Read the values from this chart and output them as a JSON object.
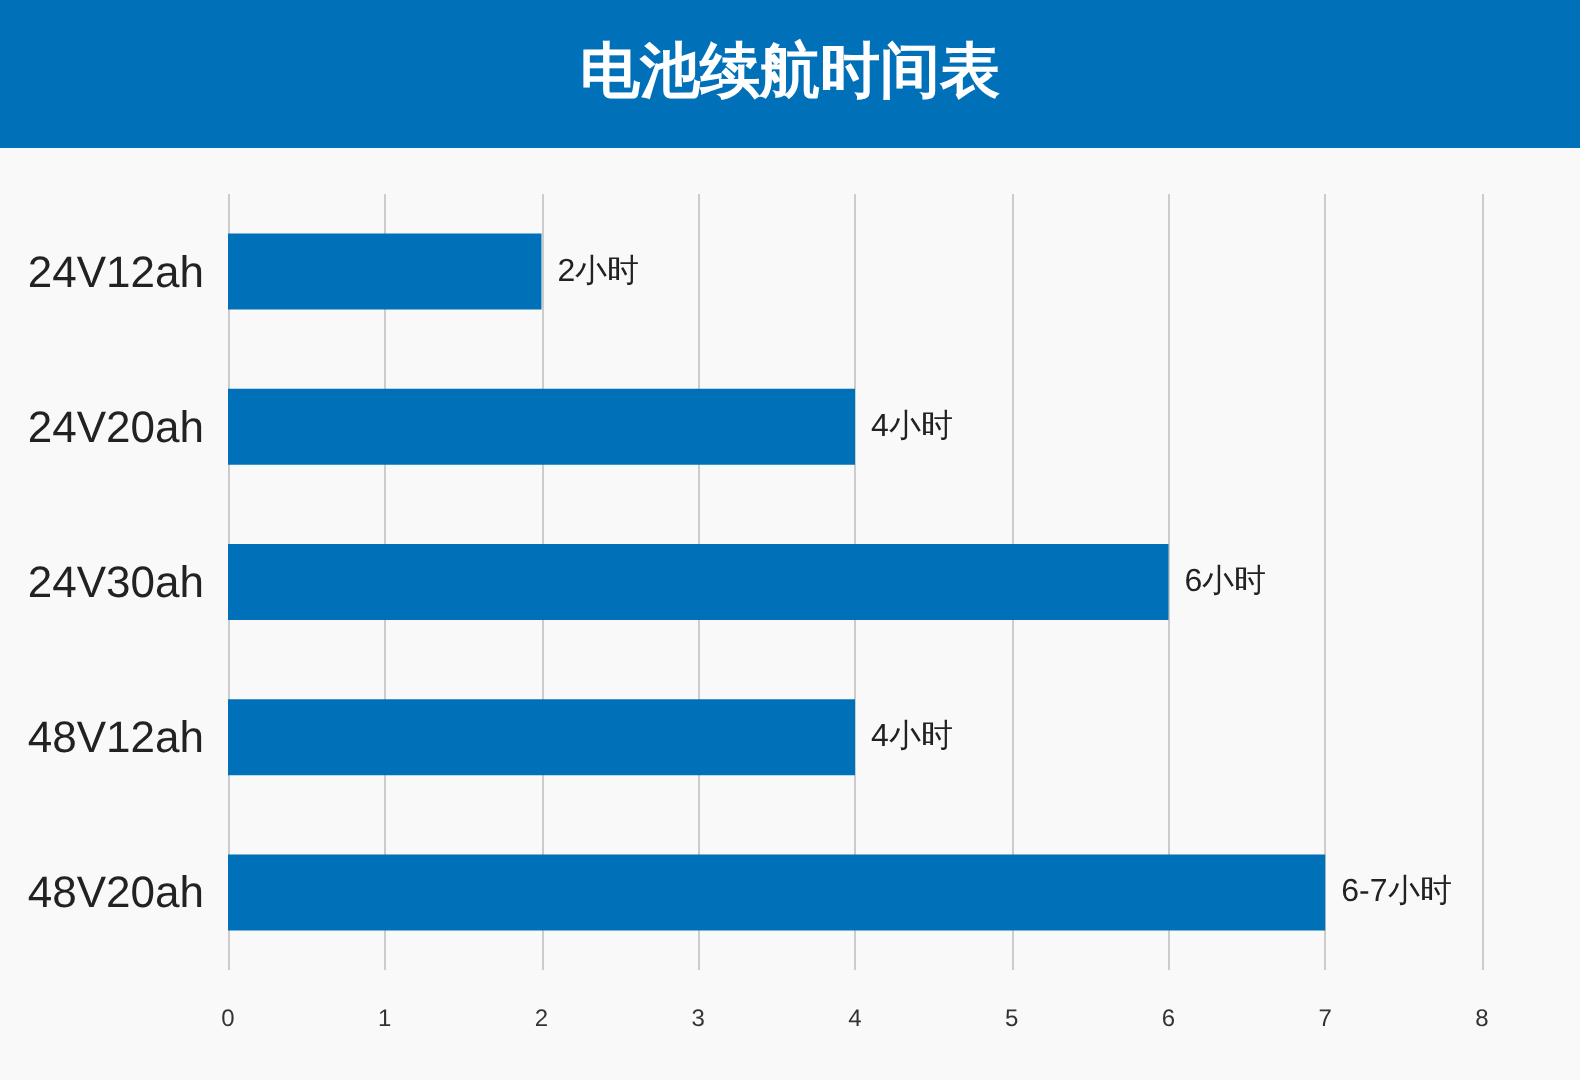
{
  "chart_data": {
    "type": "bar",
    "orientation": "horizontal",
    "title": "电池续航时间表",
    "categories": [
      "24V12ah",
      "24V20ah",
      "24V30ah",
      "48V12ah",
      "48V20ah"
    ],
    "values": [
      2,
      4,
      6,
      4,
      7
    ],
    "value_labels": [
      "2小时",
      "4小时",
      "6小时",
      "4小时",
      "6-7小时"
    ],
    "color": "#0070b8",
    "xlim": [
      0,
      8
    ],
    "xticks": [
      0,
      1,
      2,
      3,
      4,
      5,
      6,
      7,
      8
    ],
    "grid": "x"
  }
}
